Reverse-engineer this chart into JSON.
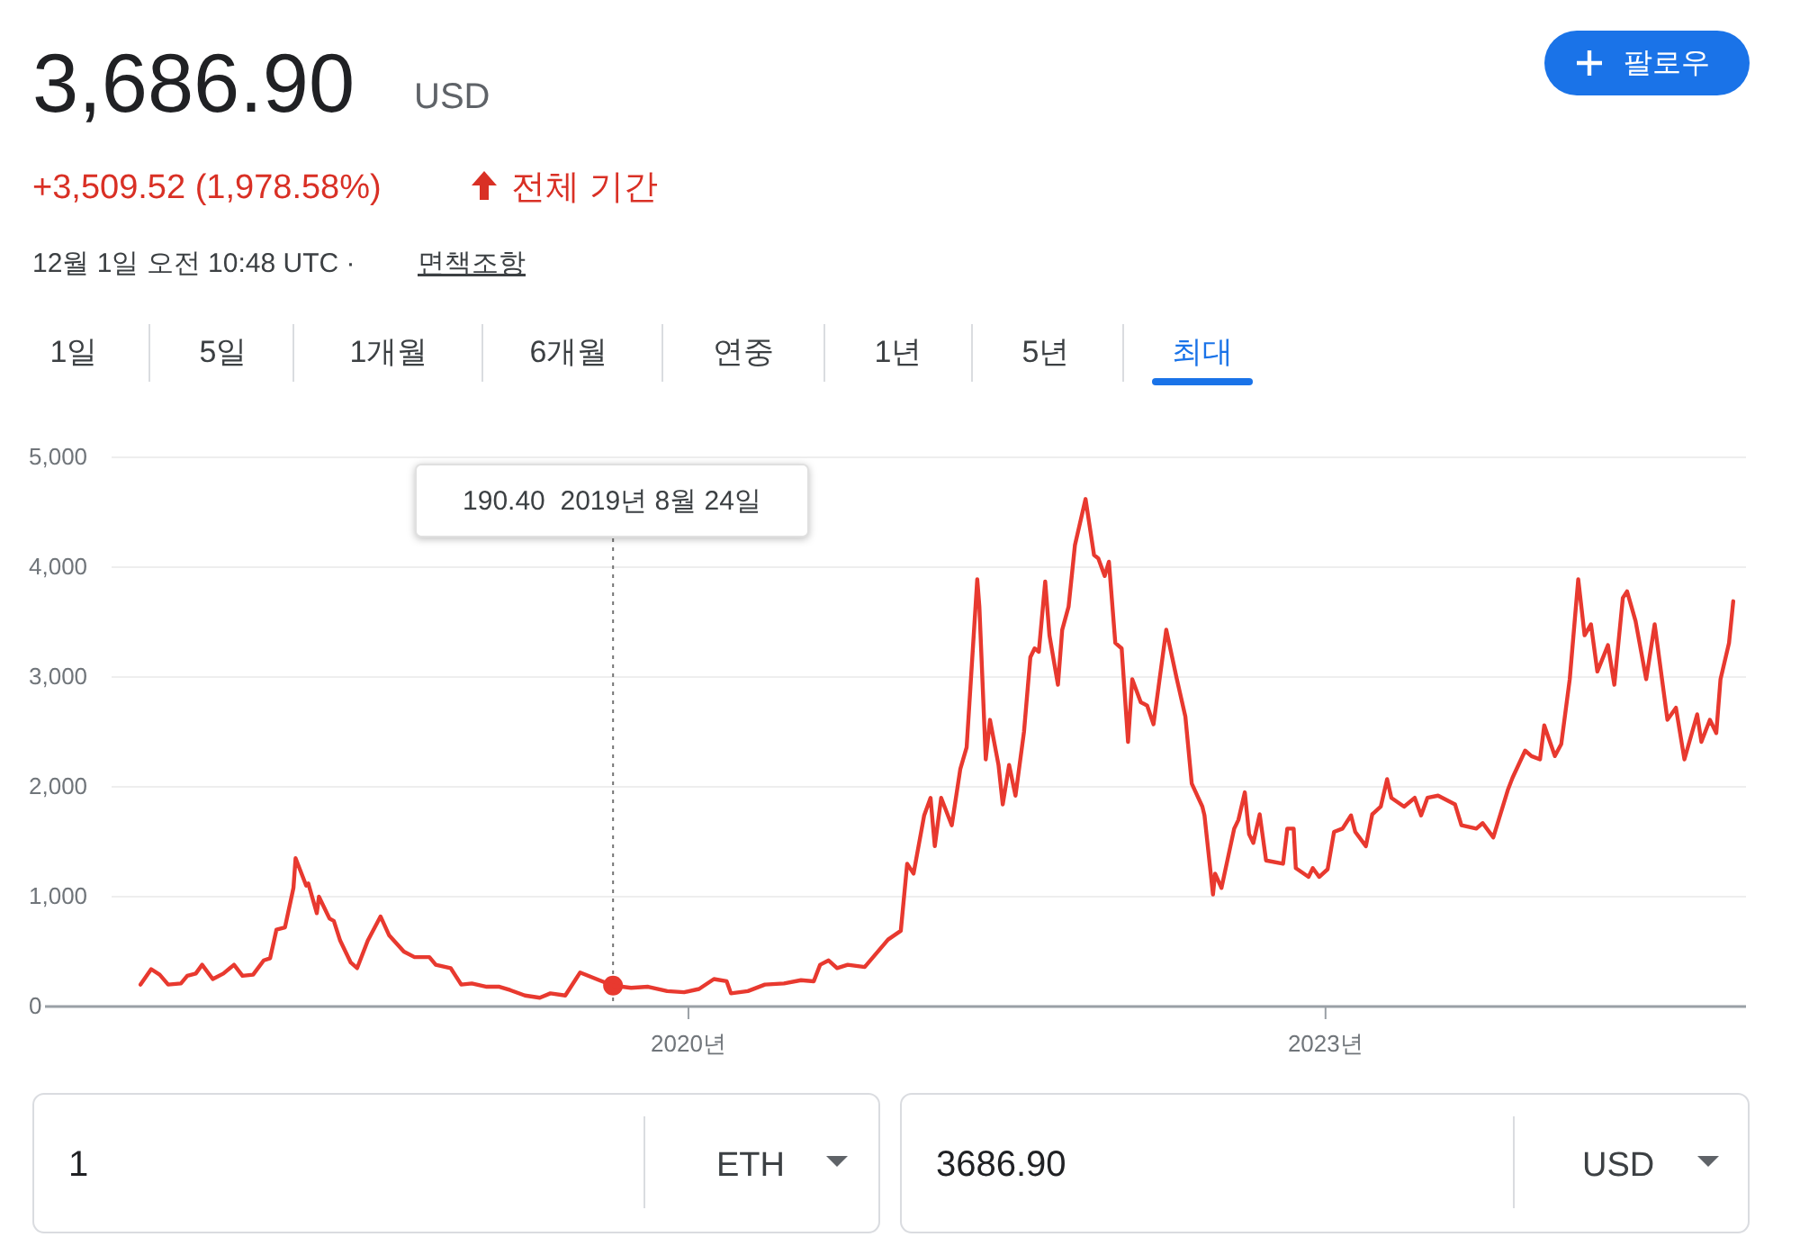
{
  "chart_data": {
    "type": "line",
    "title": "3,686.90",
    "annotations": [
      "USD",
      "+3,509.52 (1,978.58%)",
      "전체 기간",
      "12월 1일 오전 10:48 UTC ·",
      "면책조항",
      "팔로우",
      "1일",
      "5일",
      "1개월",
      "6개월",
      "연중",
      "1년",
      "5년",
      "최대",
      "1",
      "ETH",
      "3686.90",
      "USD",
      "190.40  2019년 8월 24일"
    ],
    "xlim": [
      2016.97,
      2024.98
    ],
    "xticks": [
      {
        "value": 2020,
        "label": "2020년"
      },
      {
        "value": 2023,
        "label": "2023년"
      }
    ],
    "ylim": [
      0,
      5000
    ],
    "yticks": [
      0,
      {
        "value": 1000,
        "label": "1,000"
      },
      {
        "value": 2000,
        "label": "2,000"
      },
      {
        "value": 3000,
        "label": "3,000"
      },
      {
        "value": 4000,
        "label": "4,000"
      },
      {
        "value": 5000,
        "label": "5,000"
      }
    ],
    "grid": "y",
    "marker": "none",
    "line_style": "solid",
    "ref_lines": [
      {
        "axis": "x",
        "value": 2019.645,
        "line_style": "dotted",
        "color": "#757575"
      }
    ],
    "series": [
      {
        "type": "scatter",
        "marker": "circle",
        "color": "#e8392f",
        "x": [
          2019.645
        ],
        "values": [
          190.4
        ]
      },
      {
        "color": "#e8392f",
        "x": [
          2017.42,
          2017.47,
          2017.51,
          2017.55,
          2017.61,
          2017.64,
          2017.68,
          2017.71,
          2017.76,
          2017.81,
          2017.86,
          2017.9,
          2017.95,
          2018.0,
          2018.03,
          2018.06,
          2018.1,
          2018.14,
          2018.15,
          2018.2,
          2018.21,
          2018.25,
          2018.26,
          2018.31,
          2018.33,
          2018.36,
          2018.41,
          2018.44,
          2018.49,
          2018.55,
          2018.59,
          2018.66,
          2018.71,
          2018.78,
          2018.81,
          2018.88,
          2018.93,
          2018.98,
          2019.05,
          2019.11,
          2019.16,
          2019.23,
          2019.3,
          2019.35,
          2019.42,
          2019.47,
          2019.49,
          2019.58,
          2019.645,
          2019.73,
          2019.81,
          2019.9,
          2019.98,
          2020.05,
          2020.12,
          2020.18,
          2020.2,
          2020.28,
          2020.36,
          2020.45,
          2020.53,
          2020.59,
          2020.62,
          2020.66,
          2020.7,
          2020.75,
          2020.83,
          2020.94,
          2021.0,
          2021.03,
          2021.06,
          2021.11,
          2021.14,
          2021.16,
          2021.19,
          2021.24,
          2021.28,
          2021.31,
          2021.36,
          2021.37,
          2021.4,
          2021.42,
          2021.46,
          2021.48,
          2021.51,
          2021.54,
          2021.58,
          2021.61,
          2021.63,
          2021.65,
          2021.68,
          2021.7,
          2021.74,
          2021.76,
          2021.79,
          2021.82,
          2021.87,
          2021.91,
          2021.93,
          2021.96,
          2021.98,
          2022.01,
          2022.04,
          2022.07,
          2022.09,
          2022.13,
          2022.16,
          2022.19,
          2022.25,
          2022.3,
          2022.34,
          2022.37,
          2022.42,
          2022.43,
          2022.47,
          2022.48,
          2022.51,
          2022.57,
          2022.59,
          2022.62,
          2022.64,
          2022.66,
          2022.69,
          2022.72,
          2022.8,
          2022.82,
          2022.85,
          2022.86,
          2022.92,
          2022.94,
          2022.97,
          2023.01,
          2023.04,
          2023.08,
          2023.12,
          2023.14,
          2023.19,
          2023.22,
          2023.26,
          2023.29,
          2023.31,
          2023.37,
          2023.42,
          2023.45,
          2023.48,
          2023.53,
          2023.61,
          2023.64,
          2023.71,
          2023.74,
          2023.79,
          2023.86,
          2023.88,
          2023.94,
          2023.97,
          2024.01,
          2024.03,
          2024.08,
          2024.11,
          2024.15,
          2024.19,
          2024.22,
          2024.25,
          2024.28,
          2024.33,
          2024.36,
          2024.4,
          2024.42,
          2024.46,
          2024.51,
          2024.55,
          2024.61,
          2024.65,
          2024.69,
          2024.75,
          2024.77,
          2024.81,
          2024.84,
          2024.86,
          2024.9,
          2024.92
        ],
        "values": [
          200,
          340,
          290,
          200,
          210,
          280,
          300,
          380,
          250,
          300,
          380,
          280,
          290,
          420,
          440,
          700,
          720,
          1080,
          1350,
          1100,
          1120,
          850,
          1000,
          800,
          780,
          600,
          400,
          350,
          600,
          820,
          650,
          500,
          450,
          450,
          380,
          350,
          200,
          210,
          180,
          180,
          150,
          100,
          80,
          120,
          100,
          250,
          310,
          240,
          190.4,
          170,
          180,
          140,
          130,
          160,
          250,
          230,
          120,
          140,
          200,
          210,
          240,
          230,
          380,
          420,
          350,
          380,
          360,
          610,
          690,
          1300,
          1210,
          1740,
          1900,
          1460,
          1900,
          1650,
          2160,
          2360,
          3890,
          3640,
          2250,
          2610,
          2200,
          1840,
          2200,
          1920,
          2500,
          3180,
          3260,
          3230,
          3870,
          3380,
          2930,
          3430,
          3640,
          4200,
          4620,
          4110,
          4080,
          3920,
          4050,
          3310,
          3260,
          2410,
          2980,
          2770,
          2740,
          2570,
          3430,
          2980,
          2640,
          2030,
          1820,
          1740,
          1020,
          1210,
          1080,
          1620,
          1700,
          1950,
          1570,
          1490,
          1750,
          1330,
          1300,
          1620,
          1620,
          1260,
          1180,
          1260,
          1180,
          1250,
          1590,
          1620,
          1740,
          1590,
          1460,
          1750,
          1820,
          2070,
          1900,
          1820,
          1900,
          1740,
          1900,
          1920,
          1840,
          1650,
          1620,
          1670,
          1540,
          1980,
          2080,
          2330,
          2280,
          2250,
          2560,
          2280,
          2390,
          2980,
          3890,
          3380,
          3480,
          3050,
          3290,
          2930,
          3720,
          3780,
          3510,
          2980,
          3480,
          2610,
          2720,
          2250,
          2660,
          2410,
          2610,
          2490,
          2980,
          3310,
          3690
        ]
      }
    ]
  }
}
